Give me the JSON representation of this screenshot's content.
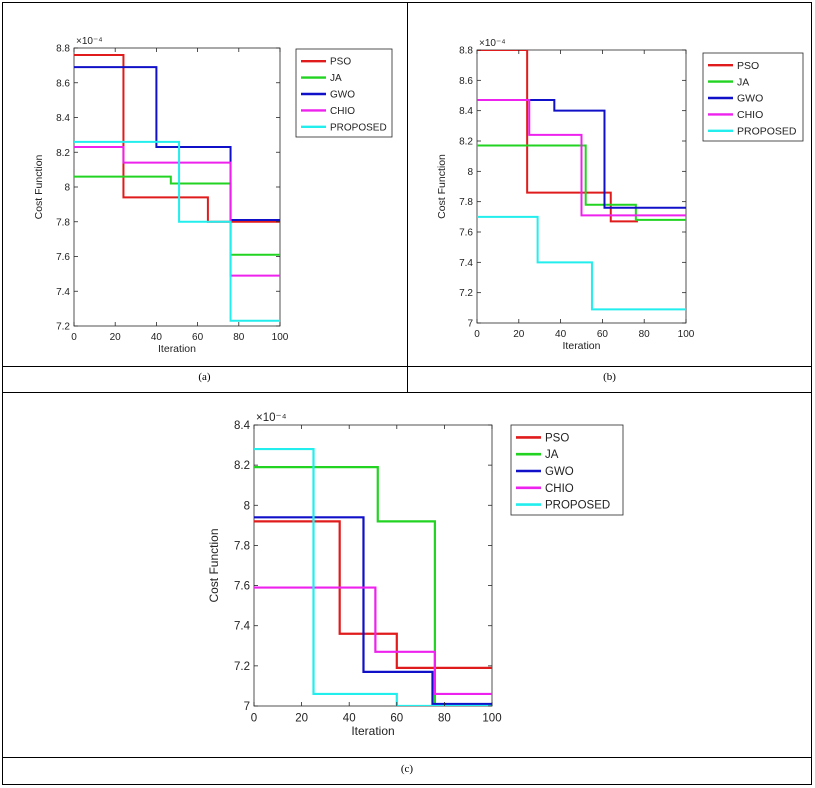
{
  "series_colors": {
    "PSO": "#e01b1b",
    "JA": "#22d322",
    "GWO": "#1010c8",
    "CHIO": "#ee22ee",
    "PROPOSED": "#22eeee"
  },
  "chart_data": [
    {
      "type": "line",
      "panel": "a",
      "caption": "(a)",
      "exponent_label": "×10⁻⁴",
      "xlabel": "Iteration",
      "ylabel": "Cost Function",
      "xlim": [
        0,
        100
      ],
      "ylim": [
        7.2,
        8.8
      ],
      "xticks": [
        0,
        20,
        40,
        60,
        80,
        100
      ],
      "yticks": [
        7.2,
        7.4,
        7.6,
        7.8,
        8,
        8.2,
        8.4,
        8.6,
        8.8
      ],
      "legend": [
        "PSO",
        "JA",
        "GWO",
        "CHIO",
        "PROPOSED"
      ],
      "series": [
        {
          "name": "PSO",
          "steps": [
            [
              0,
              8.76
            ],
            [
              24,
              7.94
            ],
            [
              65,
              7.8
            ],
            [
              100,
              7.8
            ]
          ]
        },
        {
          "name": "JA",
          "steps": [
            [
              0,
              8.06
            ],
            [
              47,
              8.02
            ],
            [
              76,
              7.61
            ],
            [
              100,
              7.61
            ]
          ]
        },
        {
          "name": "GWO",
          "steps": [
            [
              0,
              8.69
            ],
            [
              40,
              8.23
            ],
            [
              76,
              7.81
            ],
            [
              100,
              7.81
            ]
          ]
        },
        {
          "name": "CHIO",
          "steps": [
            [
              0,
              8.23
            ],
            [
              24,
              8.14
            ],
            [
              76,
              7.49
            ],
            [
              100,
              7.49
            ]
          ]
        },
        {
          "name": "PROPOSED",
          "steps": [
            [
              0,
              8.26
            ],
            [
              51,
              7.8
            ],
            [
              76,
              7.23
            ],
            [
              100,
              7.23
            ]
          ]
        }
      ]
    },
    {
      "type": "line",
      "panel": "b",
      "caption": "(b)",
      "exponent_label": "×10⁻⁴",
      "xlabel": "Iteration",
      "ylabel": "Cost Function",
      "xlim": [
        0,
        100
      ],
      "ylim": [
        7,
        8.8
      ],
      "xticks": [
        0,
        20,
        40,
        60,
        80,
        100
      ],
      "yticks": [
        7,
        7.2,
        7.4,
        7.6,
        7.8,
        8,
        8.2,
        8.4,
        8.6,
        8.8
      ],
      "legend": [
        "PSO",
        "JA",
        "GWO",
        "CHIO",
        "PROPOSED"
      ],
      "series": [
        {
          "name": "PSO",
          "steps": [
            [
              0,
              8.8
            ],
            [
              24,
              7.86
            ],
            [
              64,
              7.67
            ],
            [
              77,
              7.67
            ]
          ]
        },
        {
          "name": "JA",
          "steps": [
            [
              0,
              8.17
            ],
            [
              52,
              7.78
            ],
            [
              76,
              7.68
            ],
            [
              100,
              7.68
            ]
          ]
        },
        {
          "name": "GWO",
          "steps": [
            [
              0,
              8.47
            ],
            [
              37,
              8.4
            ],
            [
              61,
              7.76
            ],
            [
              100,
              7.76
            ]
          ]
        },
        {
          "name": "CHIO",
          "steps": [
            [
              0,
              8.47
            ],
            [
              25,
              8.24
            ],
            [
              50,
              7.71
            ],
            [
              100,
              7.71
            ]
          ]
        },
        {
          "name": "PROPOSED",
          "steps": [
            [
              0,
              7.7
            ],
            [
              29,
              7.4
            ],
            [
              55,
              7.09
            ],
            [
              100,
              7.09
            ]
          ]
        }
      ]
    },
    {
      "type": "line",
      "panel": "c",
      "caption": "(c)",
      "exponent_label": "×10⁻⁴",
      "xlabel": "Iteration",
      "ylabel": "Cost Function",
      "xlim": [
        0,
        100
      ],
      "ylim": [
        7,
        8.4
      ],
      "xticks": [
        0,
        20,
        40,
        60,
        80,
        100
      ],
      "yticks": [
        7,
        7.2,
        7.4,
        7.6,
        7.8,
        8,
        8.2,
        8.4
      ],
      "legend": [
        "PSO",
        "JA",
        "GWO",
        "CHIO",
        "PROPOSED"
      ],
      "series": [
        {
          "name": "PSO",
          "steps": [
            [
              0,
              7.92
            ],
            [
              36,
              7.36
            ],
            [
              60,
              7.19
            ],
            [
              100,
              7.19
            ]
          ]
        },
        {
          "name": "JA",
          "steps": [
            [
              0,
              8.19
            ],
            [
              52,
              7.92
            ],
            [
              76,
              7.0
            ],
            [
              100,
              7.0
            ]
          ]
        },
        {
          "name": "GWO",
          "steps": [
            [
              0,
              7.94
            ],
            [
              46,
              7.17
            ],
            [
              75,
              7.01
            ],
            [
              100,
              7.01
            ]
          ]
        },
        {
          "name": "CHIO",
          "steps": [
            [
              0,
              7.59
            ],
            [
              51,
              7.27
            ],
            [
              76,
              7.06
            ],
            [
              100,
              7.06
            ]
          ]
        },
        {
          "name": "PROPOSED",
          "steps": [
            [
              0,
              8.28
            ],
            [
              25,
              7.06
            ],
            [
              60,
              7.0
            ],
            [
              100,
              7.0
            ]
          ]
        }
      ]
    }
  ]
}
